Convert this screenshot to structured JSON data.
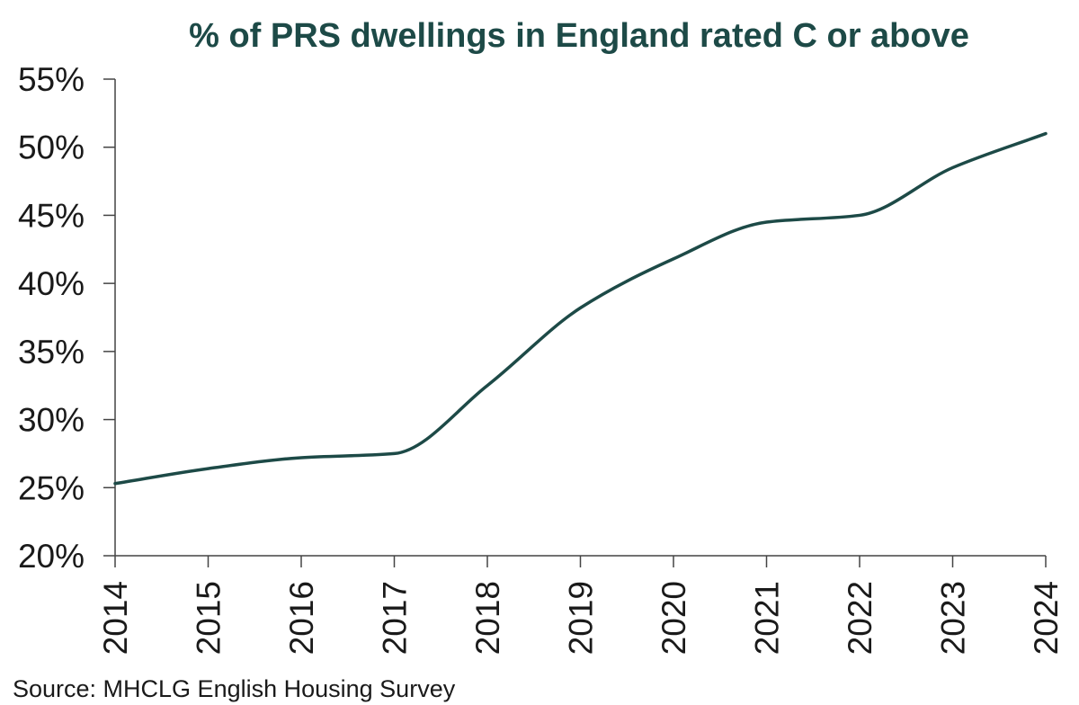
{
  "chart_data": {
    "type": "line",
    "title": "% of PRS dwellings in England rated C or above",
    "xlabel": "",
    "ylabel": "",
    "x": [
      "2014",
      "2015",
      "2016",
      "2017",
      "2018",
      "2019",
      "2020",
      "2021",
      "2022",
      "2023",
      "2024"
    ],
    "series": [
      {
        "values": [
          25.3,
          26.4,
          27.2,
          27.5,
          32.5,
          38.2,
          41.8,
          44.5,
          45.0,
          48.5,
          51.0
        ]
      }
    ],
    "y_ticks": [
      "20%",
      "25%",
      "30%",
      "35%",
      "40%",
      "45%",
      "50%",
      "55%"
    ],
    "ylim": [
      20,
      55
    ],
    "grid": false,
    "legend": "none",
    "source": "Source: MHCLG English Housing Survey",
    "colors": {
      "line": "#1d4a47",
      "title": "#1d4a47",
      "axis": "#444444"
    }
  }
}
